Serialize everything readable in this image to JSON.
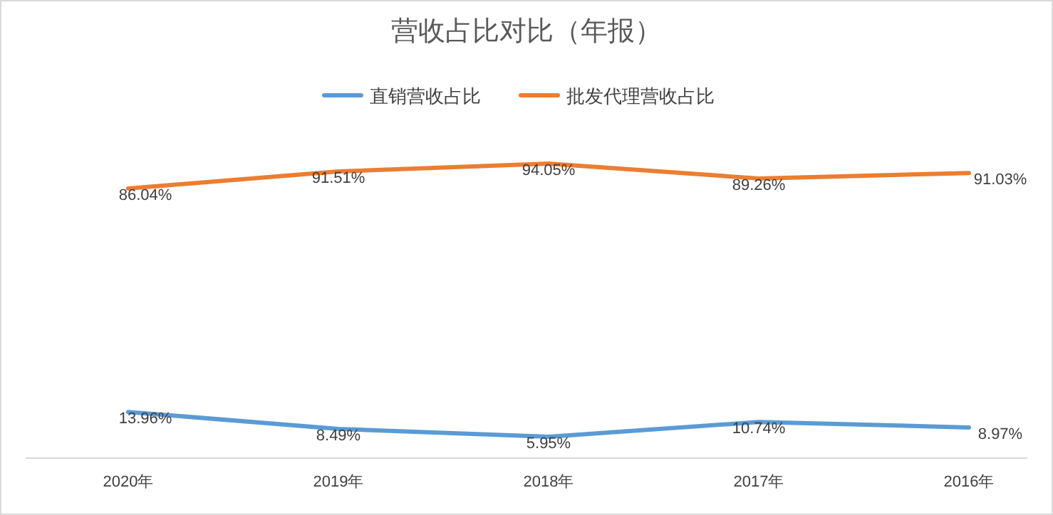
{
  "chart_data": {
    "type": "line",
    "title": "营收占比对比（年报）",
    "categories": [
      "2020年",
      "2019年",
      "2018年",
      "2017年",
      "2016年"
    ],
    "series": [
      {
        "name": "直销营收占比",
        "color": "#5b9bd5",
        "values": [
          13.96,
          8.49,
          5.95,
          10.74,
          8.97
        ],
        "value_labels": [
          "13.96%",
          "8.49%",
          "5.95%",
          "10.74%",
          "8.97%"
        ]
      },
      {
        "name": "批发代理营收占比",
        "color": "#ed7d31",
        "values": [
          86.04,
          91.51,
          94.05,
          89.26,
          91.03
        ],
        "value_labels": [
          "86.04%",
          "91.51%",
          "94.05%",
          "89.26%",
          "91.03%"
        ]
      }
    ],
    "legend": "top",
    "marker": "none",
    "line_style": "solid"
  }
}
